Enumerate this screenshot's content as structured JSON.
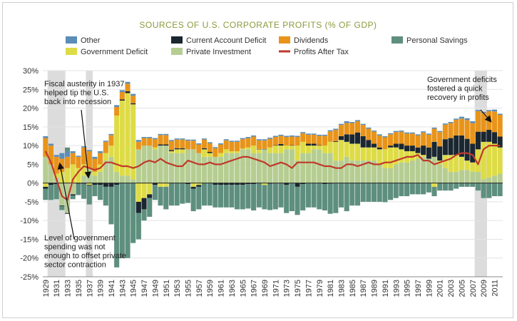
{
  "chart_data": {
    "type": "bar",
    "title": "SOURCES OF U.S. CORPORATE PROFITS (% OF GDP)",
    "xlabel": "",
    "ylabel": "",
    "ylim": [
      -25,
      30
    ],
    "yticks": [
      "-25%",
      "-20%",
      "-15%",
      "-10%",
      "-5%",
      "0%",
      "5%",
      "10%",
      "15%",
      "20%",
      "25%",
      "30%"
    ],
    "years": [
      1929,
      1930,
      1931,
      1932,
      1933,
      1934,
      1935,
      1936,
      1937,
      1938,
      1939,
      1940,
      1941,
      1942,
      1943,
      1944,
      1945,
      1946,
      1947,
      1948,
      1949,
      1950,
      1951,
      1952,
      1953,
      1954,
      1955,
      1956,
      1957,
      1958,
      1959,
      1960,
      1961,
      1962,
      1963,
      1964,
      1965,
      1966,
      1967,
      1968,
      1969,
      1970,
      1971,
      1972,
      1973,
      1974,
      1975,
      1976,
      1977,
      1978,
      1979,
      1980,
      1981,
      1982,
      1983,
      1984,
      1985,
      1986,
      1987,
      1988,
      1989,
      1990,
      1991,
      1992,
      1993,
      1994,
      1995,
      1996,
      1997,
      1998,
      1999,
      2000,
      2001,
      2002,
      2003,
      2004,
      2005,
      2006,
      2007,
      2008,
      2009,
      2010,
      2011,
      2012
    ],
    "tick_labels": [
      "1929",
      "1931",
      "1933",
      "1935",
      "1937",
      "1939",
      "1941",
      "1943",
      "1945",
      "1947",
      "1949",
      "1951",
      "1953",
      "1955",
      "1957",
      "1959",
      "1961",
      "1963",
      "1965",
      "1967",
      "1969",
      "1971",
      "1973",
      "1975",
      "1977",
      "1979",
      "1981",
      "1983",
      "1985",
      "1987",
      "1989",
      "1991",
      "1993",
      "1995",
      "1997",
      "1999",
      "2001",
      "2003",
      "2005",
      "2007",
      "2009",
      "2011"
    ],
    "recession_bands": [
      [
        1930,
        1932
      ],
      [
        1937,
        1937
      ],
      [
        2008,
        2009
      ]
    ],
    "series": [
      {
        "name": "Other",
        "color": "#5b8db8",
        "kind": "bar",
        "values": [
          0.5,
          0.5,
          0.5,
          1.5,
          1.5,
          0.5,
          0.3,
          0.3,
          0.3,
          0.5,
          0.5,
          0.3,
          0.3,
          0.5,
          0.5,
          0.5,
          0.5,
          0.5,
          0.3,
          0.3,
          0.3,
          0.3,
          0.3,
          0.3,
          0.3,
          0.3,
          0.3,
          0.3,
          0.3,
          0.3,
          0.3,
          0.3,
          0.3,
          0.3,
          0.3,
          0.3,
          0.3,
          0.3,
          0.3,
          0.3,
          0.3,
          0.3,
          0.3,
          0.3,
          0.3,
          0.3,
          0.3,
          0.3,
          0.3,
          0.3,
          0.3,
          0.3,
          0.3,
          0.3,
          0.3,
          0.5,
          0.3,
          0.3,
          0.3,
          0.3,
          0.3,
          0.3,
          0.3,
          0.3,
          0.3,
          0.3,
          0.3,
          0.3,
          0.3,
          0.3,
          0.3,
          0.3,
          0.3,
          0.3,
          0.3,
          0.3,
          0.5,
          0.5,
          0.5,
          0.3,
          0.3,
          0.3,
          0.5,
          0.3
        ]
      },
      {
        "name": "Current Account Deficit",
        "color": "#1a2630",
        "kind": "bar",
        "values": [
          -0.5,
          -0.5,
          -0.3,
          -0.2,
          -0.2,
          -0.3,
          -0.2,
          -0.2,
          -0.2,
          -0.5,
          -0.5,
          -1,
          -1,
          -0.5,
          0.3,
          0.5,
          0.3,
          -3,
          -3,
          -1,
          -0.5,
          0.3,
          0.3,
          0.3,
          0.3,
          0.3,
          -0.3,
          -0.5,
          -0.5,
          0.3,
          0.3,
          -0.5,
          -0.5,
          -0.5,
          -0.5,
          -0.5,
          -0.5,
          -0.3,
          -0.3,
          0.1,
          0.1,
          -0.2,
          0.1,
          0.4,
          -0.5,
          0.1,
          -1,
          -0.3,
          0.5,
          0.5,
          0.1,
          -0.3,
          -0.2,
          0.2,
          1,
          2,
          2.5,
          3,
          3,
          2,
          1,
          0.5,
          -0.1,
          0.5,
          1,
          1.5,
          1.5,
          1.5,
          1.5,
          2.5,
          3,
          4,
          3.8,
          4.2,
          4.5,
          5.2,
          5.7,
          5.8,
          5,
          4.7,
          2.7,
          3.2,
          3.1,
          2.9
        ]
      },
      {
        "name": "Dividends",
        "color": "#e8941a",
        "kind": "bar",
        "values": [
          5,
          5,
          4.5,
          3.5,
          3,
          3,
          3,
          4.5,
          4.5,
          3.5,
          3,
          3,
          2.8,
          2.3,
          2,
          2,
          2,
          2,
          2,
          2,
          2.2,
          2.5,
          2.5,
          2.4,
          2.3,
          2.3,
          2.3,
          2.3,
          2.3,
          2.3,
          2.3,
          2.3,
          2.3,
          2.4,
          2.5,
          2.5,
          2.5,
          2.5,
          2.4,
          2.3,
          2.3,
          2.3,
          2.2,
          2.2,
          2.3,
          2.3,
          2.3,
          2.3,
          2.4,
          2.4,
          2.5,
          2.6,
          2.8,
          3,
          3,
          3,
          3,
          3,
          3,
          3,
          3.2,
          3.2,
          3.2,
          3,
          3.1,
          3.2,
          3.2,
          3.2,
          3.2,
          3.5,
          3.4,
          3.5,
          3.8,
          3.9,
          4,
          4.2,
          4.5,
          5,
          5.5,
          5.5,
          5,
          5,
          5.5,
          5.8
        ]
      },
      {
        "name": "Government Deficit",
        "color": "#dedc46",
        "kind": "bar",
        "values": [
          -1,
          0,
          1,
          3,
          4,
          5,
          4,
          3,
          -0.5,
          1,
          2,
          2,
          3,
          15,
          20,
          22,
          20,
          -5,
          -4,
          -3,
          0.5,
          -1,
          -1,
          0.5,
          1,
          1,
          0,
          -1,
          -0.5,
          2,
          1,
          0,
          1,
          1,
          0.5,
          0.5,
          0.2,
          0.5,
          2,
          1,
          -0.5,
          1.5,
          2,
          2,
          1,
          1,
          4,
          3,
          2,
          1,
          1,
          2,
          3,
          5,
          5.5,
          4,
          4.5,
          4.5,
          3.5,
          3.5,
          3.5,
          4,
          5,
          5.5,
          4.5,
          3.5,
          3,
          2.5,
          1.5,
          0.5,
          0,
          -1,
          1,
          3.5,
          4.5,
          4.5,
          3.5,
          2.5,
          2.5,
          6,
          10,
          9.5,
          8.5,
          7
        ]
      },
      {
        "name": "Personal Savings",
        "color": "#5e8f7e",
        "kind": "bar",
        "values": [
          -3,
          -4,
          -4,
          -1,
          1,
          -1,
          -3,
          -4,
          -5,
          -3,
          -4,
          -5,
          -10,
          -22,
          -20,
          -20,
          -16,
          -7,
          -3,
          -5,
          -4,
          -5,
          -6,
          -6,
          -6,
          -5.5,
          -5,
          -6,
          -6,
          -6,
          -6,
          -6,
          -6,
          -6,
          -6,
          -6.5,
          -6.5,
          -6.5,
          -7,
          -6.5,
          -6.5,
          -7,
          -7,
          -6.5,
          -7.5,
          -7.5,
          -7.5,
          -7,
          -6.5,
          -6.5,
          -7,
          -7,
          -8,
          -8,
          -6.5,
          -7.5,
          -6,
          -6,
          -5,
          -5,
          -5,
          -5,
          -5,
          -4.5,
          -4,
          -3.5,
          -3.5,
          -3,
          -3,
          -3,
          -2.5,
          -2.5,
          -2,
          -2,
          -2,
          -1.5,
          -1,
          -1,
          -1,
          -2,
          -4,
          -4,
          -3.5,
          -3.5
        ]
      },
      {
        "name": "Private Investment",
        "color": "#b6cd92",
        "kind": "bar",
        "values": [
          7,
          5,
          1.5,
          -6,
          -8,
          -3,
          0,
          2,
          4,
          2,
          3,
          6,
          7,
          3,
          2,
          2,
          1,
          9,
          10,
          10,
          9,
          10,
          10,
          8,
          8,
          8,
          9,
          9,
          8,
          7,
          7,
          7,
          7,
          8,
          8,
          8,
          9,
          9,
          8,
          8,
          9,
          8,
          8,
          8,
          9,
          9,
          6,
          8,
          8,
          9,
          9,
          8,
          8,
          6,
          6,
          7,
          6,
          6,
          6,
          6,
          6,
          5,
          4,
          4,
          5,
          5.5,
          5.5,
          6,
          6.5,
          7,
          6.5,
          7,
          5,
          4,
          3,
          3,
          3.5,
          3.5,
          3,
          3,
          1,
          1.5,
          2,
          2.5
        ]
      },
      {
        "name": "Profits After Tax",
        "color": "#c0392b",
        "kind": "line",
        "values": [
          8.5,
          5.5,
          1,
          -3.5,
          -4.5,
          1,
          3,
          4.5,
          4,
          3.5,
          4,
          5.5,
          5.5,
          5,
          4.5,
          4.5,
          4,
          4.5,
          5.5,
          6,
          5.5,
          6.5,
          5.5,
          5,
          4.5,
          4.5,
          6,
          5.5,
          5,
          5,
          5.5,
          5,
          5,
          5.5,
          6,
          6.5,
          7,
          7,
          6.5,
          6,
          5.5,
          4.5,
          5,
          5.5,
          5,
          4,
          5.5,
          5.5,
          5.5,
          5.5,
          5,
          4.5,
          4.5,
          4,
          4,
          5,
          5,
          4.5,
          5,
          5.5,
          5,
          5,
          5.5,
          5.5,
          6,
          6.5,
          7,
          7,
          7.5,
          6,
          6,
          5,
          5.5,
          6,
          6.5,
          7.5,
          8,
          8,
          7.5,
          5,
          9,
          10,
          10,
          10
        ]
      }
    ],
    "legend": {
      "placement": "top",
      "items": [
        "Other",
        "Current Account Deficit",
        "Dividends",
        "Personal Savings",
        "Government Deficit",
        "Private Investment",
        "Profits After Tax"
      ]
    },
    "annotations": [
      {
        "lines": [
          "Fiscal austerity in 1937",
          "helped tip the U.S.",
          "back into recession"
        ]
      },
      {
        "lines": [
          "Level of government",
          "spending was not",
          "enough to offset private",
          "sector contraction"
        ]
      },
      {
        "lines": [
          "Government deficits",
          "fostered a quick",
          "recovery in profits"
        ]
      }
    ]
  }
}
